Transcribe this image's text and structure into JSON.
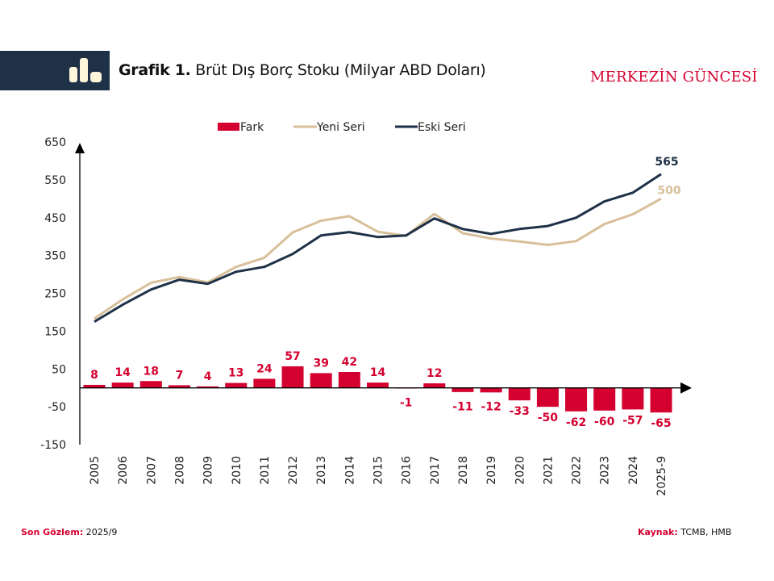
{
  "header": {
    "title_bold": "Grafik 1.",
    "title_rest": " Brüt Dış Borç Stoku (Milyar ABD Doları)",
    "brand": "MERKEZİN GÜNCESİ",
    "icon": "bar-chart-icon"
  },
  "footer": {
    "last_obs_label": "Son Gözlem:",
    "last_obs_value": " 2025/9",
    "source_label": "Kaynak:",
    "source_value": " TCMB, HMB"
  },
  "colors": {
    "fark": "#d4002f",
    "yeni": "#d8c09a",
    "eski": "#1e3147",
    "header_band": "#1e3147"
  },
  "chart_data": {
    "type": "bar+line",
    "title": "Grafik 1. Brüt Dış Borç Stoku (Milyar ABD Doları)",
    "xlabel": "",
    "ylabel": "",
    "ylim": [
      -150,
      650
    ],
    "yticks": [
      650,
      550,
      450,
      350,
      250,
      150,
      50,
      -50,
      -150
    ],
    "grid": false,
    "legend_position": "top-center",
    "categories": [
      "2005",
      "2006",
      "2007",
      "2008",
      "2009",
      "2010",
      "2011",
      "2012",
      "2013",
      "2014",
      "2015",
      "2016",
      "2017",
      "2018",
      "2019",
      "2020",
      "2021",
      "2022",
      "2023",
      "2024",
      "2025-9"
    ],
    "series": [
      {
        "name": "Fark",
        "type": "bar",
        "values": [
          8,
          14,
          18,
          7,
          4,
          13,
          24,
          57,
          39,
          42,
          14,
          -1,
          12,
          -11,
          -12,
          -33,
          -50,
          -62,
          -60,
          -57,
          -65
        ]
      },
      {
        "name": "Yeni Seri",
        "type": "line",
        "values": [
          183,
          234,
          278,
          293,
          279,
          320,
          344,
          411,
          442,
          454,
          413,
          402,
          460,
          409,
          395,
          387,
          378,
          388,
          433,
          459,
          500
        ]
      },
      {
        "name": "Eski Seri",
        "type": "line",
        "values": [
          175,
          220,
          260,
          286,
          275,
          307,
          320,
          354,
          403,
          412,
          399,
          403,
          448,
          420,
          407,
          420,
          428,
          450,
          493,
          516,
          565
        ]
      }
    ],
    "end_labels": {
      "Eski Seri": "565",
      "Yeni Seri": "500"
    }
  }
}
